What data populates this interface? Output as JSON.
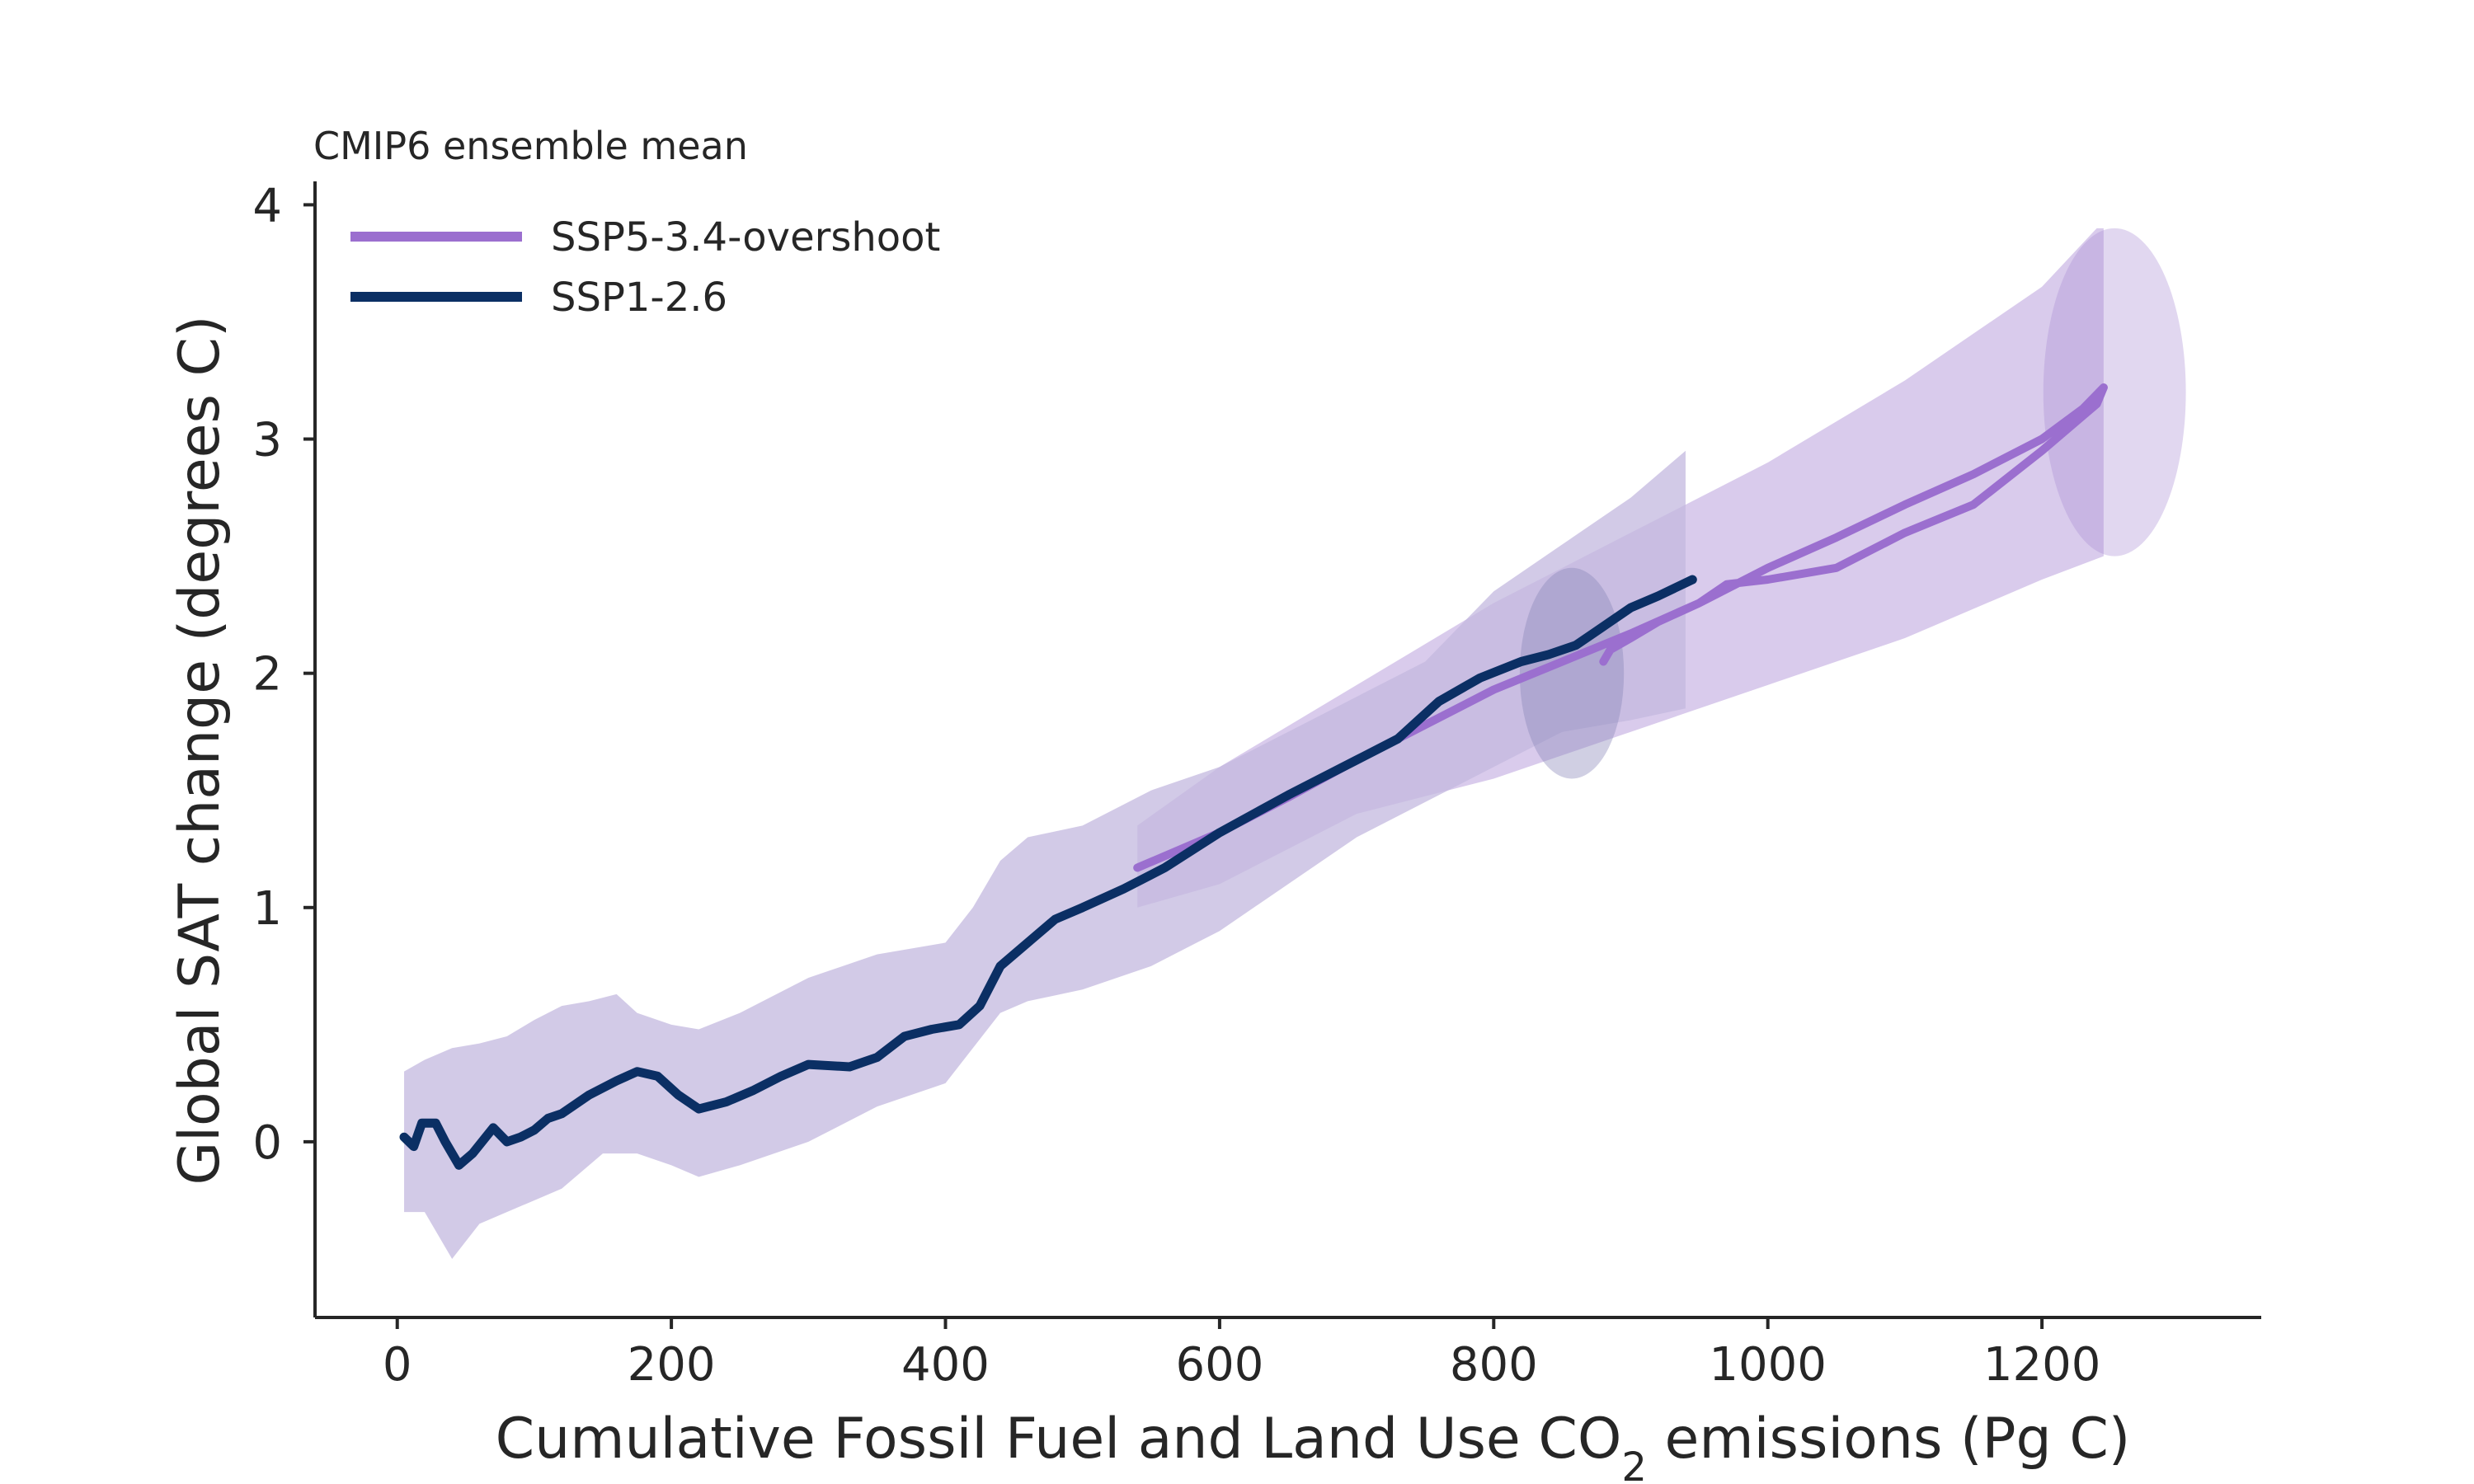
{
  "chart_data": {
    "type": "line",
    "title": "CMIP6 ensemble mean",
    "xlabel_prefix": "Cumulative Fossil Fuel and Land Use CO",
    "xlabel_sub": "2",
    "xlabel_suffix": " emissions (Pg C)",
    "ylabel": "Global SAT change (degrees C)",
    "xlim": [
      -60,
      1360
    ],
    "ylim": [
      -0.75,
      4.1
    ],
    "xticks": [
      0,
      200,
      400,
      600,
      800,
      1000,
      1200
    ],
    "yticks": [
      0,
      1,
      2,
      3,
      4
    ],
    "xtick_labels": [
      "0",
      "200",
      "400",
      "600",
      "800",
      "1000",
      "1200"
    ],
    "ytick_labels": [
      "0",
      "1",
      "2",
      "3",
      "4"
    ],
    "legend_position": "upper-left",
    "series": [
      {
        "name": "SSP5-3.4-overshoot",
        "color": "#9b6fcf",
        "band_color": "#b9a0dc",
        "ellipse": {
          "center": [
            1253,
            3.2
          ],
          "radius_x": 52,
          "radius_y": 0.7
        },
        "band_upper": [
          [
            540,
            1.35
          ],
          [
            600,
            1.6
          ],
          [
            700,
            1.95
          ],
          [
            800,
            2.3
          ],
          [
            900,
            2.6
          ],
          [
            1000,
            2.9
          ],
          [
            1100,
            3.25
          ],
          [
            1200,
            3.65
          ],
          [
            1240,
            3.9
          ],
          [
            1245,
            3.9
          ]
        ],
        "band_lower": [
          [
            540,
            1.0
          ],
          [
            600,
            1.1
          ],
          [
            700,
            1.4
          ],
          [
            800,
            1.55
          ],
          [
            900,
            1.75
          ],
          [
            1000,
            1.95
          ],
          [
            1100,
            2.15
          ],
          [
            1200,
            2.4
          ],
          [
            1245,
            2.5
          ]
        ],
        "line": [
          [
            540,
            1.17
          ],
          [
            600,
            1.32
          ],
          [
            650,
            1.47
          ],
          [
            700,
            1.63
          ],
          [
            750,
            1.78
          ],
          [
            800,
            1.93
          ],
          [
            850,
            2.05
          ],
          [
            900,
            2.17
          ],
          [
            950,
            2.3
          ],
          [
            1000,
            2.45
          ],
          [
            1050,
            2.58
          ],
          [
            1100,
            2.72
          ],
          [
            1150,
            2.85
          ],
          [
            1200,
            3.0
          ],
          [
            1230,
            3.13
          ],
          [
            1245,
            3.22
          ],
          [
            1240,
            3.15
          ],
          [
            1200,
            2.95
          ],
          [
            1150,
            2.72
          ],
          [
            1100,
            2.6
          ],
          [
            1050,
            2.45
          ],
          [
            1000,
            2.4
          ],
          [
            970,
            2.38
          ],
          [
            950,
            2.3
          ],
          [
            920,
            2.22
          ],
          [
            900,
            2.15
          ],
          [
            885,
            2.1
          ],
          [
            880,
            2.05
          ]
        ]
      },
      {
        "name": "SSP1-2.6",
        "color": "#0b2f64",
        "band_color": "#c3b8df",
        "ellipse": {
          "center": [
            857,
            2.0
          ],
          "radius_x": 38,
          "radius_y": 0.45
        },
        "band_upper": [
          [
            5,
            0.3
          ],
          [
            20,
            0.35
          ],
          [
            40,
            0.4
          ],
          [
            60,
            0.42
          ],
          [
            80,
            0.45
          ],
          [
            100,
            0.52
          ],
          [
            120,
            0.58
          ],
          [
            140,
            0.6
          ],
          [
            160,
            0.63
          ],
          [
            175,
            0.55
          ],
          [
            200,
            0.5
          ],
          [
            220,
            0.48
          ],
          [
            250,
            0.55
          ],
          [
            300,
            0.7
          ],
          [
            350,
            0.8
          ],
          [
            400,
            0.85
          ],
          [
            420,
            1.0
          ],
          [
            440,
            1.2
          ],
          [
            460,
            1.3
          ],
          [
            500,
            1.35
          ],
          [
            550,
            1.5
          ],
          [
            600,
            1.6
          ],
          [
            650,
            1.75
          ],
          [
            700,
            1.9
          ],
          [
            750,
            2.05
          ],
          [
            800,
            2.35
          ],
          [
            850,
            2.55
          ],
          [
            900,
            2.75
          ],
          [
            940,
            2.95
          ]
        ],
        "band_lower": [
          [
            5,
            -0.3
          ],
          [
            20,
            -0.3
          ],
          [
            40,
            -0.5
          ],
          [
            60,
            -0.35
          ],
          [
            80,
            -0.3
          ],
          [
            100,
            -0.25
          ],
          [
            120,
            -0.2
          ],
          [
            150,
            -0.05
          ],
          [
            175,
            -0.05
          ],
          [
            200,
            -0.1
          ],
          [
            220,
            -0.15
          ],
          [
            250,
            -0.1
          ],
          [
            300,
            0.0
          ],
          [
            350,
            0.15
          ],
          [
            400,
            0.25
          ],
          [
            420,
            0.4
          ],
          [
            440,
            0.55
          ],
          [
            460,
            0.6
          ],
          [
            500,
            0.65
          ],
          [
            550,
            0.75
          ],
          [
            600,
            0.9
          ],
          [
            650,
            1.1
          ],
          [
            700,
            1.3
          ],
          [
            750,
            1.45
          ],
          [
            800,
            1.6
          ],
          [
            850,
            1.75
          ],
          [
            900,
            1.8
          ],
          [
            940,
            1.85
          ]
        ],
        "line": [
          [
            5,
            0.02
          ],
          [
            12,
            -0.02
          ],
          [
            18,
            0.08
          ],
          [
            28,
            0.08
          ],
          [
            35,
            0.0
          ],
          [
            45,
            -0.1
          ],
          [
            55,
            -0.05
          ],
          [
            70,
            0.06
          ],
          [
            80,
            0.0
          ],
          [
            90,
            0.02
          ],
          [
            100,
            0.05
          ],
          [
            110,
            0.1
          ],
          [
            120,
            0.12
          ],
          [
            140,
            0.2
          ],
          [
            160,
            0.26
          ],
          [
            175,
            0.3
          ],
          [
            190,
            0.28
          ],
          [
            205,
            0.2
          ],
          [
            220,
            0.14
          ],
          [
            240,
            0.17
          ],
          [
            260,
            0.22
          ],
          [
            280,
            0.28
          ],
          [
            300,
            0.33
          ],
          [
            330,
            0.32
          ],
          [
            350,
            0.36
          ],
          [
            370,
            0.45
          ],
          [
            390,
            0.48
          ],
          [
            410,
            0.5
          ],
          [
            425,
            0.58
          ],
          [
            440,
            0.75
          ],
          [
            460,
            0.85
          ],
          [
            480,
            0.95
          ],
          [
            500,
            1.0
          ],
          [
            530,
            1.08
          ],
          [
            560,
            1.17
          ],
          [
            600,
            1.32
          ],
          [
            650,
            1.48
          ],
          [
            700,
            1.63
          ],
          [
            730,
            1.72
          ],
          [
            760,
            1.88
          ],
          [
            790,
            1.98
          ],
          [
            820,
            2.05
          ],
          [
            840,
            2.08
          ],
          [
            860,
            2.12
          ],
          [
            880,
            2.2
          ],
          [
            900,
            2.28
          ],
          [
            920,
            2.33
          ],
          [
            945,
            2.4
          ]
        ]
      }
    ]
  }
}
